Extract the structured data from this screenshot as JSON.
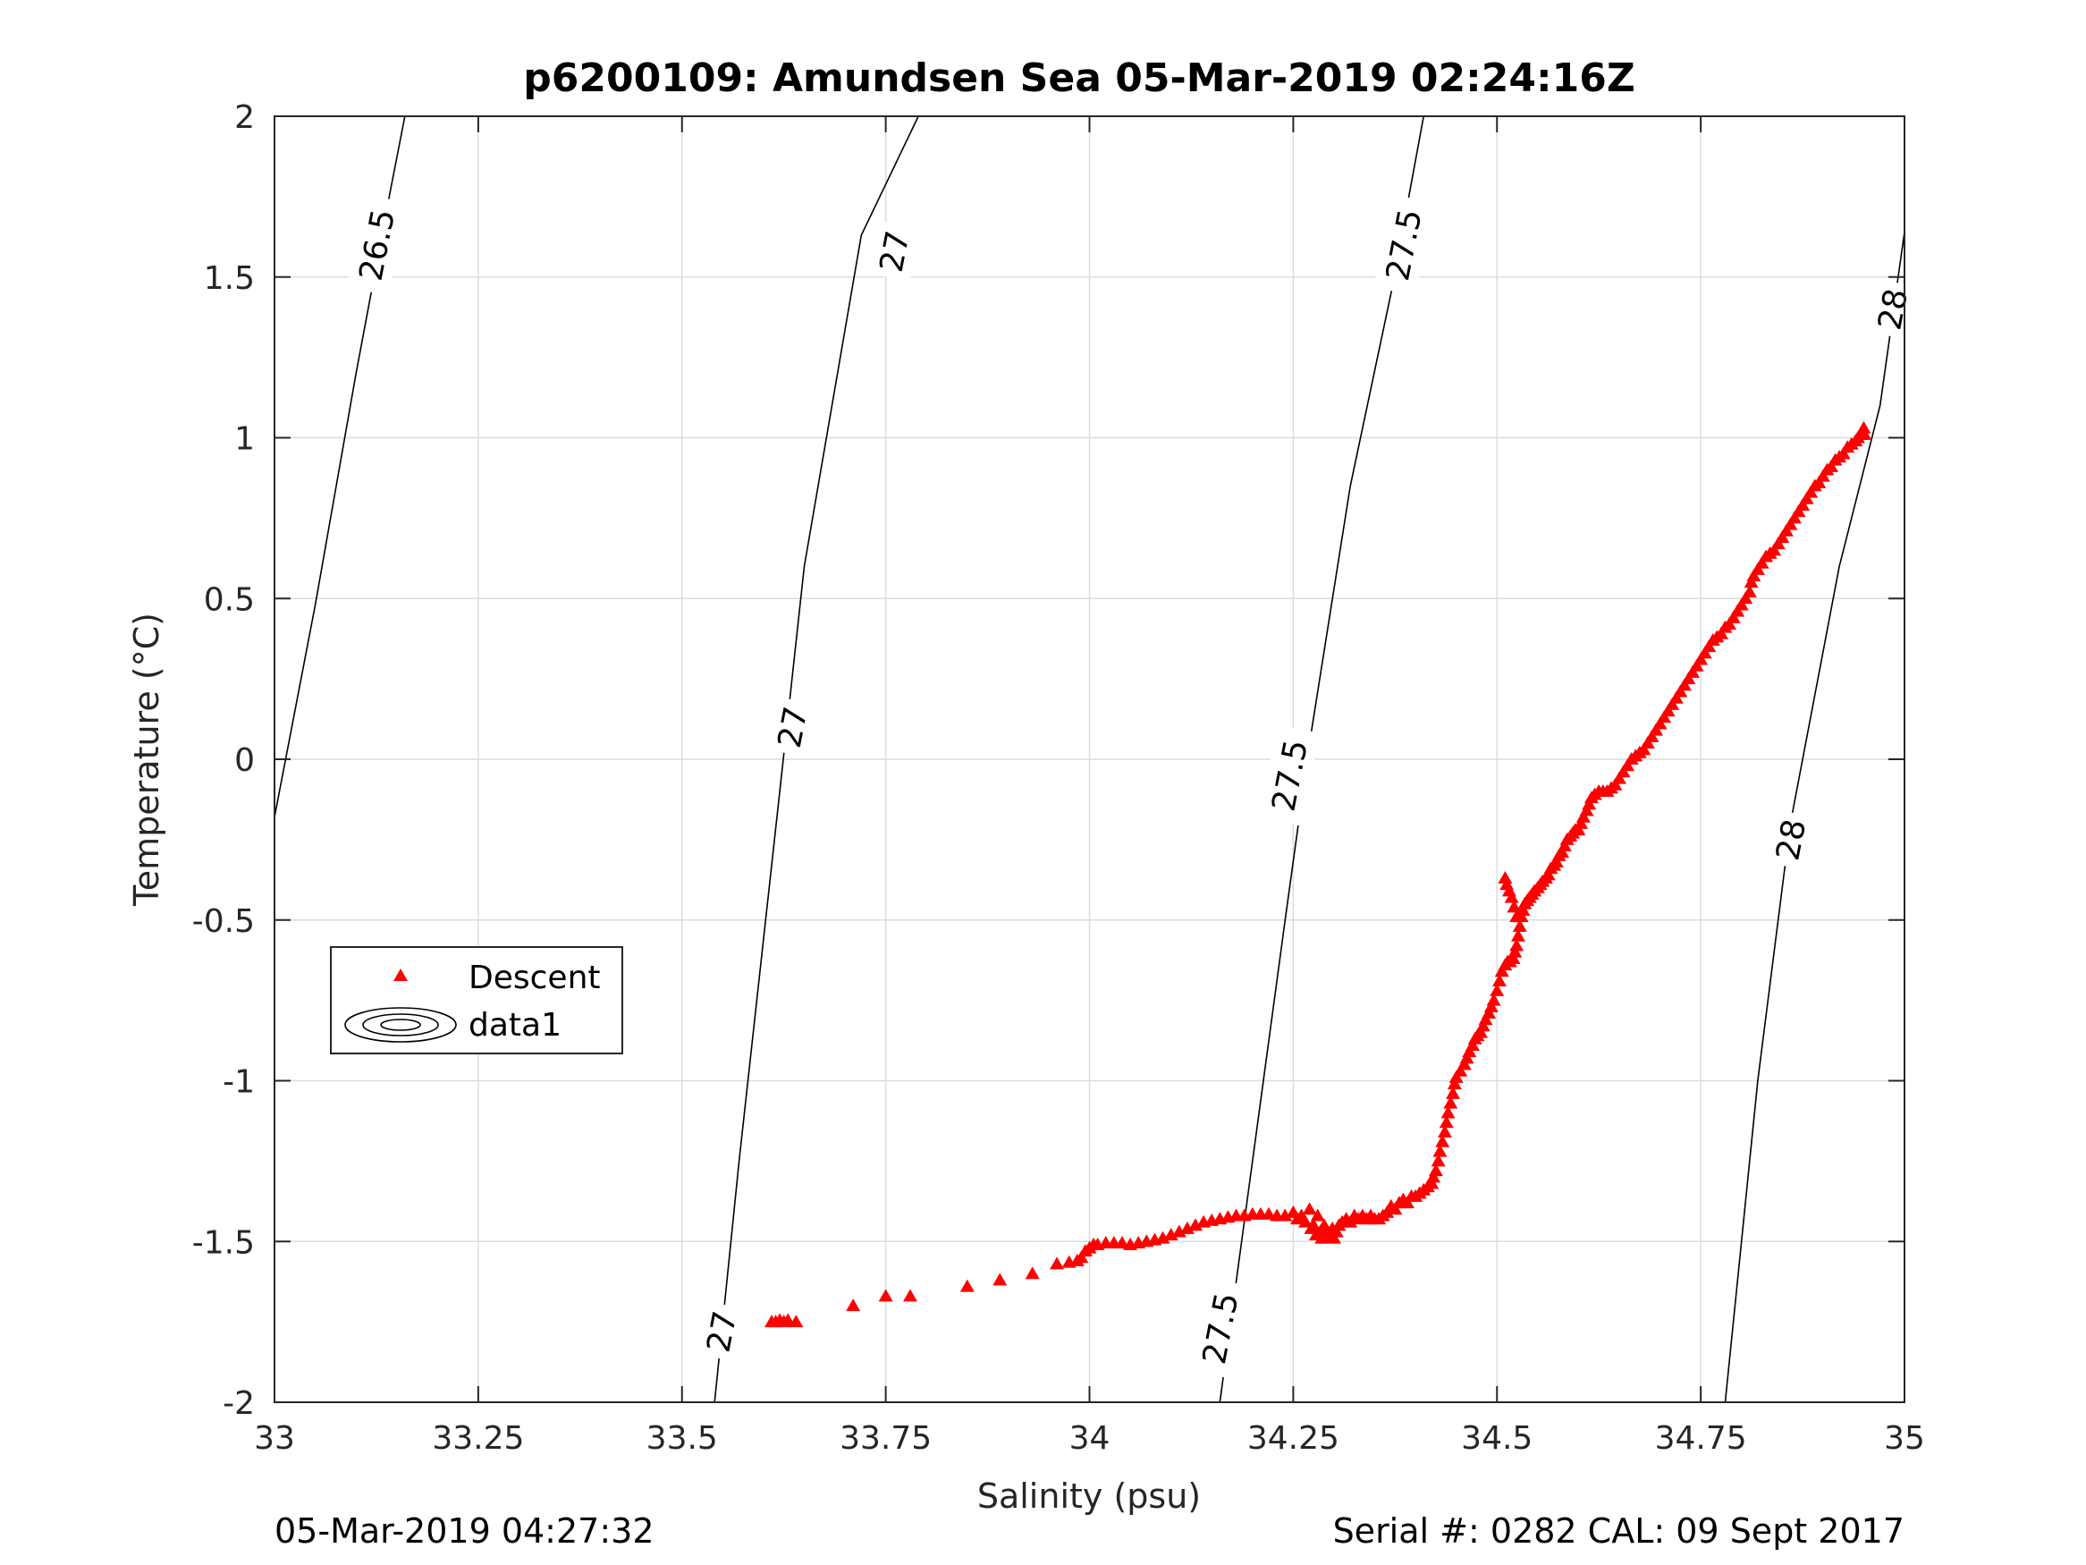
{
  "chart_data": {
    "type": "scatter",
    "title": "p6200109: Amundsen Sea 05-Mar-2019 02:24:16Z",
    "xlabel": "Salinity (psu)",
    "ylabel": "Temperature (°C)",
    "xlim": [
      33,
      35
    ],
    "ylim": [
      -2,
      2
    ],
    "xticks": [
      33,
      33.25,
      33.5,
      33.75,
      34,
      34.25,
      34.5,
      34.75,
      35
    ],
    "xtick_labels": [
      "33",
      "33.25",
      "33.5",
      "33.75",
      "34",
      "34.25",
      "34.5",
      "34.75",
      "35"
    ],
    "yticks": [
      -2,
      -1.5,
      -1,
      -0.5,
      0,
      0.5,
      1,
      1.5,
      2
    ],
    "ytick_labels": [
      "-2",
      "-1.5",
      "-1",
      "-0.5",
      "0",
      "0.5",
      "1",
      "1.5",
      "2"
    ],
    "grid": true,
    "legend_position": "center-left",
    "legend": [
      "Descent",
      "data1"
    ],
    "footer_left": "05-Mar-2019 04:27:32",
    "footer_right": "Serial #: 0282  CAL: 09 Sept 2017",
    "marker_color": "#ff0000",
    "series": [
      {
        "name": "Descent",
        "marker": "triangle",
        "points": [
          [
            33.61,
            -1.75
          ],
          [
            33.615,
            -1.75
          ],
          [
            33.62,
            -1.745
          ],
          [
            33.625,
            -1.75
          ],
          [
            33.63,
            -1.745
          ],
          [
            33.64,
            -1.75
          ],
          [
            33.71,
            -1.7
          ],
          [
            33.75,
            -1.67
          ],
          [
            33.78,
            -1.67
          ],
          [
            33.85,
            -1.64
          ],
          [
            33.89,
            -1.62
          ],
          [
            33.93,
            -1.6
          ],
          [
            33.96,
            -1.57
          ],
          [
            33.975,
            -1.565
          ],
          [
            33.985,
            -1.56
          ],
          [
            33.99,
            -1.55
          ],
          [
            33.995,
            -1.53
          ],
          [
            34.0,
            -1.52
          ],
          [
            34.005,
            -1.51
          ],
          [
            34.01,
            -1.51
          ],
          [
            34.02,
            -1.505
          ],
          [
            34.03,
            -1.505
          ],
          [
            34.04,
            -1.505
          ],
          [
            34.05,
            -1.51
          ],
          [
            34.06,
            -1.505
          ],
          [
            34.07,
            -1.5
          ],
          [
            34.08,
            -1.495
          ],
          [
            34.09,
            -1.49
          ],
          [
            34.1,
            -1.48
          ],
          [
            34.11,
            -1.47
          ],
          [
            34.12,
            -1.46
          ],
          [
            34.13,
            -1.45
          ],
          [
            34.14,
            -1.44
          ],
          [
            34.15,
            -1.435
          ],
          [
            34.16,
            -1.43
          ],
          [
            34.17,
            -1.425
          ],
          [
            34.18,
            -1.42
          ],
          [
            34.19,
            -1.42
          ],
          [
            34.2,
            -1.415
          ],
          [
            34.21,
            -1.415
          ],
          [
            34.22,
            -1.415
          ],
          [
            34.23,
            -1.42
          ],
          [
            34.24,
            -1.42
          ],
          [
            34.25,
            -1.41
          ],
          [
            34.255,
            -1.43
          ],
          [
            34.26,
            -1.42
          ],
          [
            34.265,
            -1.44
          ],
          [
            34.27,
            -1.4
          ],
          [
            34.272,
            -1.46
          ],
          [
            34.275,
            -1.45
          ],
          [
            34.278,
            -1.48
          ],
          [
            34.28,
            -1.42
          ],
          [
            34.283,
            -1.47
          ],
          [
            34.285,
            -1.49
          ],
          [
            34.288,
            -1.45
          ],
          [
            34.29,
            -1.47
          ],
          [
            34.292,
            -1.49
          ],
          [
            34.295,
            -1.48
          ],
          [
            34.298,
            -1.46
          ],
          [
            34.3,
            -1.49
          ],
          [
            34.303,
            -1.47
          ],
          [
            34.306,
            -1.45
          ],
          [
            34.31,
            -1.44
          ],
          [
            34.315,
            -1.43
          ],
          [
            34.32,
            -1.44
          ],
          [
            34.325,
            -1.42
          ],
          [
            34.33,
            -1.43
          ],
          [
            34.335,
            -1.42
          ],
          [
            34.34,
            -1.43
          ],
          [
            34.345,
            -1.42
          ],
          [
            34.35,
            -1.43
          ],
          [
            34.355,
            -1.43
          ],
          [
            34.36,
            -1.42
          ],
          [
            34.365,
            -1.41
          ],
          [
            34.37,
            -1.39
          ],
          [
            34.375,
            -1.4
          ],
          [
            34.38,
            -1.38
          ],
          [
            34.385,
            -1.37
          ],
          [
            34.39,
            -1.38
          ],
          [
            34.395,
            -1.36
          ],
          [
            34.4,
            -1.36
          ],
          [
            34.405,
            -1.35
          ],
          [
            34.41,
            -1.34
          ],
          [
            34.415,
            -1.33
          ],
          [
            34.42,
            -1.32
          ],
          [
            34.422,
            -1.3
          ],
          [
            34.425,
            -1.28
          ],
          [
            34.428,
            -1.25
          ],
          [
            34.43,
            -1.22
          ],
          [
            34.433,
            -1.19
          ],
          [
            34.436,
            -1.16
          ],
          [
            34.438,
            -1.13
          ],
          [
            34.44,
            -1.1
          ],
          [
            34.443,
            -1.07
          ],
          [
            34.446,
            -1.04
          ],
          [
            34.448,
            -1.01
          ],
          [
            34.45,
            -0.99
          ],
          [
            34.455,
            -0.97
          ],
          [
            34.46,
            -0.95
          ],
          [
            34.463,
            -0.93
          ],
          [
            34.466,
            -0.91
          ],
          [
            34.47,
            -0.89
          ],
          [
            34.473,
            -0.87
          ],
          [
            34.476,
            -0.86
          ],
          [
            34.48,
            -0.85
          ],
          [
            34.483,
            -0.83
          ],
          [
            34.486,
            -0.81
          ],
          [
            34.49,
            -0.79
          ],
          [
            34.493,
            -0.77
          ],
          [
            34.496,
            -0.75
          ],
          [
            34.5,
            -0.72
          ],
          [
            34.503,
            -0.69
          ],
          [
            34.506,
            -0.66
          ],
          [
            34.51,
            -0.64
          ],
          [
            34.513,
            -0.63
          ],
          [
            34.516,
            -0.63
          ],
          [
            34.52,
            -0.62
          ],
          [
            34.522,
            -0.6
          ],
          [
            34.524,
            -0.58
          ],
          [
            34.526,
            -0.55
          ],
          [
            34.528,
            -0.52
          ],
          [
            34.53,
            -0.49
          ],
          [
            34.532,
            -0.47
          ],
          [
            34.534,
            -0.45
          ],
          [
            34.537,
            -0.44
          ],
          [
            34.54,
            -0.43
          ],
          [
            34.543,
            -0.42
          ],
          [
            34.546,
            -0.41
          ],
          [
            34.55,
            -0.4
          ],
          [
            34.553,
            -0.39
          ],
          [
            34.556,
            -0.38
          ],
          [
            34.56,
            -0.37
          ],
          [
            34.563,
            -0.36
          ],
          [
            34.566,
            -0.34
          ],
          [
            34.57,
            -0.33
          ],
          [
            34.573,
            -0.32
          ],
          [
            34.576,
            -0.3
          ],
          [
            34.58,
            -0.29
          ],
          [
            34.583,
            -0.27
          ],
          [
            34.586,
            -0.25
          ],
          [
            34.59,
            -0.24
          ],
          [
            34.593,
            -0.23
          ],
          [
            34.596,
            -0.22
          ],
          [
            34.6,
            -0.22
          ],
          [
            34.603,
            -0.2
          ],
          [
            34.606,
            -0.18
          ],
          [
            34.61,
            -0.16
          ],
          [
            34.613,
            -0.14
          ],
          [
            34.616,
            -0.12
          ],
          [
            34.62,
            -0.11
          ],
          [
            34.625,
            -0.1
          ],
          [
            34.63,
            -0.1
          ],
          [
            34.635,
            -0.1
          ],
          [
            34.64,
            -0.09
          ],
          [
            34.645,
            -0.08
          ],
          [
            34.65,
            -0.06
          ],
          [
            34.655,
            -0.04
          ],
          [
            34.66,
            -0.02
          ],
          [
            34.665,
            0.0
          ],
          [
            34.67,
            0.01
          ],
          [
            34.675,
            0.02
          ],
          [
            34.68,
            0.03
          ],
          [
            34.685,
            0.05
          ],
          [
            34.69,
            0.07
          ],
          [
            34.695,
            0.09
          ],
          [
            34.7,
            0.11
          ],
          [
            34.705,
            0.13
          ],
          [
            34.71,
            0.15
          ],
          [
            34.715,
            0.17
          ],
          [
            34.72,
            0.19
          ],
          [
            34.725,
            0.21
          ],
          [
            34.73,
            0.23
          ],
          [
            34.735,
            0.25
          ],
          [
            34.74,
            0.27
          ],
          [
            34.745,
            0.29
          ],
          [
            34.75,
            0.31
          ],
          [
            34.755,
            0.33
          ],
          [
            34.76,
            0.35
          ],
          [
            34.765,
            0.37
          ],
          [
            34.77,
            0.38
          ],
          [
            34.775,
            0.39
          ],
          [
            34.78,
            0.41
          ],
          [
            34.785,
            0.42
          ],
          [
            34.79,
            0.44
          ],
          [
            34.795,
            0.46
          ],
          [
            34.8,
            0.48
          ],
          [
            34.805,
            0.5
          ],
          [
            34.81,
            0.52
          ],
          [
            34.812,
            0.55
          ],
          [
            34.815,
            0.57
          ],
          [
            34.82,
            0.59
          ],
          [
            34.825,
            0.61
          ],
          [
            34.83,
            0.63
          ],
          [
            34.835,
            0.64
          ],
          [
            34.84,
            0.65
          ],
          [
            34.845,
            0.67
          ],
          [
            34.85,
            0.69
          ],
          [
            34.855,
            0.71
          ],
          [
            34.86,
            0.73
          ],
          [
            34.865,
            0.75
          ],
          [
            34.87,
            0.77
          ],
          [
            34.875,
            0.79
          ],
          [
            34.88,
            0.81
          ],
          [
            34.885,
            0.83
          ],
          [
            34.89,
            0.85
          ],
          [
            34.895,
            0.86
          ],
          [
            34.9,
            0.88
          ],
          [
            34.905,
            0.9
          ],
          [
            34.91,
            0.91
          ],
          [
            34.915,
            0.93
          ],
          [
            34.92,
            0.94
          ],
          [
            34.925,
            0.95
          ],
          [
            34.93,
            0.97
          ],
          [
            34.935,
            0.98
          ],
          [
            34.94,
            0.99
          ],
          [
            34.943,
            1.0
          ],
          [
            34.946,
            1.01
          ],
          [
            34.948,
            1.02
          ],
          [
            34.95,
            1.03
          ],
          [
            34.951,
            1.01
          ]
        ],
        "spike_points": [
          [
            34.51,
            -0.37
          ],
          [
            34.512,
            -0.39
          ],
          [
            34.515,
            -0.41
          ],
          [
            34.518,
            -0.43
          ],
          [
            34.521,
            -0.46
          ],
          [
            34.524,
            -0.49
          ]
        ]
      }
    ],
    "contours": [
      {
        "level": "26.5",
        "points": [
          [
            33.0,
            -0.18
          ],
          [
            33.05,
            0.48
          ],
          [
            33.1,
            1.2
          ],
          [
            33.14,
            1.74
          ],
          [
            33.16,
            2.0
          ]
        ],
        "labels": [
          {
            "x": 33.125,
            "y": 1.6,
            "text": "26.5"
          }
        ]
      },
      {
        "level": "27",
        "points": [
          [
            33.54,
            -2.0
          ],
          [
            33.57,
            -1.25
          ],
          [
            33.62,
            -0.1
          ],
          [
            33.65,
            0.6
          ],
          [
            33.72,
            1.63
          ],
          [
            33.79,
            2.0
          ]
        ],
        "labels": [
          {
            "x": 33.548,
            "y": -1.78,
            "text": "27"
          },
          {
            "x": 33.635,
            "y": 0.1,
            "text": "27"
          },
          {
            "x": 33.76,
            "y": 1.58,
            "text": "27"
          }
        ]
      },
      {
        "level": "27.5",
        "points": [
          [
            34.16,
            -2.0
          ],
          [
            34.2,
            -1.25
          ],
          [
            34.24,
            -0.5
          ],
          [
            34.27,
            0.05
          ],
          [
            34.32,
            0.85
          ],
          [
            34.37,
            1.45
          ],
          [
            34.41,
            2.0
          ]
        ],
        "labels": [
          {
            "x": 34.16,
            "y": -1.77,
            "text": "27.5"
          },
          {
            "x": 34.245,
            "y": -0.05,
            "text": "27.5"
          },
          {
            "x": 34.385,
            "y": 1.6,
            "text": "27.5"
          }
        ]
      },
      {
        "level": "28",
        "points": [
          [
            34.78,
            -2.0
          ],
          [
            34.82,
            -1.0
          ],
          [
            34.86,
            -0.2
          ],
          [
            34.92,
            0.6
          ],
          [
            34.97,
            1.1
          ],
          [
            35.0,
            1.64
          ]
        ],
        "labels": [
          {
            "x": 34.86,
            "y": -0.25,
            "text": "28"
          },
          {
            "x": 34.985,
            "y": 1.4,
            "text": "28"
          }
        ]
      }
    ]
  }
}
